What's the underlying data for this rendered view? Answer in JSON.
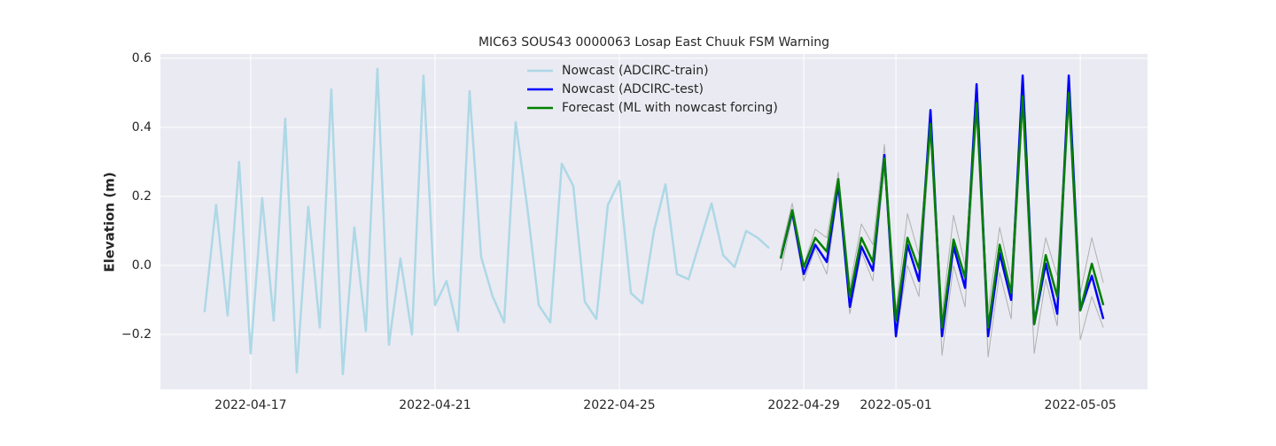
{
  "chart_data": {
    "type": "line",
    "title": "MIC63 SOUS43 0000063 Losap East Chuuk FSM Warning",
    "ylabel": "Elevation (m)",
    "xlim": [
      "2022-04-15 01:00",
      "2022-05-06 11:00"
    ],
    "ylim": [
      -0.359,
      0.6125
    ],
    "xticks": [
      "2022-04-17",
      "2022-04-21",
      "2022-04-25",
      "2022-04-29",
      "2022-05-01",
      "2022-05-05"
    ],
    "yticks": [
      {
        "value": -0.2,
        "label": "−0.2"
      },
      {
        "value": 0,
        "label": "0.0"
      },
      0.2,
      0.4,
      0.6
    ],
    "grid": true,
    "legend": "upper center",
    "background": "#eaeaf2",
    "series": [
      {
        "color": "#b0b0b0",
        "width": 1,
        "x": [
          "2022-04-28 12:00",
          "2022-04-28 18:00",
          "2022-04-29 00:00",
          "2022-04-29 06:00",
          "2022-04-29 12:00",
          "2022-04-29 18:00",
          "2022-04-30 00:00",
          "2022-04-30 06:00",
          "2022-04-30 12:00",
          "2022-04-30 18:00",
          "2022-05-01 00:00",
          "2022-05-01 06:00",
          "2022-05-01 12:00",
          "2022-05-01 18:00",
          "2022-05-02 00:00",
          "2022-05-02 06:00",
          "2022-05-02 12:00",
          "2022-05-02 18:00",
          "2022-05-03 00:00",
          "2022-05-03 06:00",
          "2022-05-03 12:00",
          "2022-05-03 18:00",
          "2022-05-04 00:00",
          "2022-05-04 06:00",
          "2022-05-04 12:00",
          "2022-05-04 18:00",
          "2022-05-05 00:00",
          "2022-05-05 06:00",
          "2022-05-05 12:00"
        ],
        "values": [
          0.04,
          0.18,
          0.0,
          0.105,
          0.08,
          0.27,
          -0.06,
          0.12,
          0.06,
          0.35,
          -0.13,
          0.15,
          0.03,
          0.44,
          -0.14,
          0.145,
          0.0,
          0.49,
          -0.13,
          0.11,
          -0.04,
          0.53,
          -0.11,
          0.08,
          -0.03,
          0.54,
          -0.08,
          0.08,
          -0.05
        ]
      },
      {
        "color": "#b0b0b0",
        "width": 1,
        "x": [
          "2022-04-28 12:00",
          "2022-04-28 18:00",
          "2022-04-29 00:00",
          "2022-04-29 06:00",
          "2022-04-29 12:00",
          "2022-04-29 18:00",
          "2022-04-30 00:00",
          "2022-04-30 06:00",
          "2022-04-30 12:00",
          "2022-04-30 18:00",
          "2022-05-01 00:00",
          "2022-05-01 06:00",
          "2022-05-01 12:00",
          "2022-05-01 18:00",
          "2022-05-02 00:00",
          "2022-05-02 06:00",
          "2022-05-02 12:00",
          "2022-05-02 18:00",
          "2022-05-03 00:00",
          "2022-05-03 06:00",
          "2022-05-03 12:00",
          "2022-05-03 18:00",
          "2022-05-04 00:00",
          "2022-05-04 06:00",
          "2022-05-04 12:00",
          "2022-05-04 18:00",
          "2022-05-05 00:00",
          "2022-05-05 06:00",
          "2022-05-05 12:00"
        ],
        "values": [
          -0.015,
          0.14,
          -0.045,
          0.05,
          -0.025,
          0.22,
          -0.14,
          0.04,
          -0.045,
          0.28,
          -0.21,
          0.0,
          -0.09,
          0.38,
          -0.26,
          0.0,
          -0.12,
          0.44,
          -0.265,
          -0.02,
          -0.155,
          0.46,
          -0.255,
          -0.04,
          -0.175,
          0.47,
          -0.215,
          -0.09,
          -0.18
        ]
      },
      {
        "name": "Nowcast (ADCIRC-train)",
        "color": "#add8e6",
        "width": 2.5,
        "x": [
          "2022-04-16 00:00",
          "2022-04-16 06:00",
          "2022-04-16 12:00",
          "2022-04-16 18:00",
          "2022-04-17 00:00",
          "2022-04-17 06:00",
          "2022-04-17 12:00",
          "2022-04-17 18:00",
          "2022-04-18 00:00",
          "2022-04-18 06:00",
          "2022-04-18 12:00",
          "2022-04-18 18:00",
          "2022-04-19 00:00",
          "2022-04-19 06:00",
          "2022-04-19 12:00",
          "2022-04-19 18:00",
          "2022-04-20 00:00",
          "2022-04-20 06:00",
          "2022-04-20 12:00",
          "2022-04-20 18:00",
          "2022-04-21 00:00",
          "2022-04-21 06:00",
          "2022-04-21 12:00",
          "2022-04-21 18:00",
          "2022-04-22 00:00",
          "2022-04-22 06:00",
          "2022-04-22 12:00",
          "2022-04-22 18:00",
          "2022-04-23 00:00",
          "2022-04-23 06:00",
          "2022-04-23 12:00",
          "2022-04-23 18:00",
          "2022-04-24 00:00",
          "2022-04-24 06:00",
          "2022-04-24 12:00",
          "2022-04-24 18:00",
          "2022-04-25 00:00",
          "2022-04-25 06:00",
          "2022-04-25 12:00",
          "2022-04-25 18:00",
          "2022-04-26 00:00",
          "2022-04-26 06:00",
          "2022-04-26 12:00",
          "2022-04-26 18:00",
          "2022-04-27 00:00",
          "2022-04-27 06:00",
          "2022-04-27 12:00",
          "2022-04-27 18:00",
          "2022-04-28 00:00",
          "2022-04-28 06:00"
        ],
        "values": [
          -0.135,
          0.175,
          -0.145,
          0.3,
          -0.255,
          0.195,
          -0.16,
          0.425,
          -0.31,
          0.17,
          -0.18,
          0.51,
          -0.315,
          0.11,
          -0.19,
          0.57,
          -0.23,
          0.02,
          -0.2,
          0.55,
          -0.115,
          -0.045,
          -0.19,
          0.505,
          0.025,
          -0.09,
          -0.165,
          0.415,
          0.17,
          -0.115,
          -0.165,
          0.295,
          0.23,
          -0.105,
          -0.155,
          0.175,
          0.245,
          -0.08,
          -0.11,
          0.1,
          0.235,
          -0.025,
          -0.04,
          0.07,
          0.18,
          0.03,
          -0.005,
          0.1,
          0.08,
          0.05
        ]
      },
      {
        "name": "Nowcast (ADCIRC-test)",
        "color": "#0000ff",
        "width": 2.5,
        "x": [
          "2022-04-28 12:00",
          "2022-04-28 18:00",
          "2022-04-29 00:00",
          "2022-04-29 06:00",
          "2022-04-29 12:00",
          "2022-04-29 18:00",
          "2022-04-30 00:00",
          "2022-04-30 06:00",
          "2022-04-30 12:00",
          "2022-04-30 18:00",
          "2022-05-01 00:00",
          "2022-05-01 06:00",
          "2022-05-01 12:00",
          "2022-05-01 18:00",
          "2022-05-02 00:00",
          "2022-05-02 06:00",
          "2022-05-02 12:00",
          "2022-05-02 18:00",
          "2022-05-03 00:00",
          "2022-05-03 06:00",
          "2022-05-03 12:00",
          "2022-05-03 18:00",
          "2022-05-04 00:00",
          "2022-05-04 06:00",
          "2022-05-04 12:00",
          "2022-05-04 18:00",
          "2022-05-05 00:00",
          "2022-05-05 06:00",
          "2022-05-05 12:00"
        ],
        "values": [
          0.02,
          0.155,
          -0.025,
          0.06,
          0.01,
          0.235,
          -0.12,
          0.055,
          -0.015,
          0.32,
          -0.205,
          0.06,
          -0.045,
          0.45,
          -0.205,
          0.055,
          -0.065,
          0.525,
          -0.205,
          0.035,
          -0.1,
          0.55,
          -0.17,
          0.005,
          -0.14,
          0.55,
          -0.13,
          -0.03,
          -0.155
        ]
      },
      {
        "name": "Forecast (ML with nowcast forcing)",
        "color": "#008000",
        "width": 2.5,
        "x": [
          "2022-04-28 12:00",
          "2022-04-28 18:00",
          "2022-04-29 00:00",
          "2022-04-29 06:00",
          "2022-04-29 12:00",
          "2022-04-29 18:00",
          "2022-04-30 00:00",
          "2022-04-30 06:00",
          "2022-04-30 12:00",
          "2022-04-30 18:00",
          "2022-05-01 00:00",
          "2022-05-01 06:00",
          "2022-05-01 12:00",
          "2022-05-01 18:00",
          "2022-05-02 00:00",
          "2022-05-02 06:00",
          "2022-05-02 12:00",
          "2022-05-02 18:00",
          "2022-05-03 00:00",
          "2022-05-03 06:00",
          "2022-05-03 12:00",
          "2022-05-03 18:00",
          "2022-05-04 00:00",
          "2022-05-04 06:00",
          "2022-05-04 12:00",
          "2022-05-04 18:00",
          "2022-05-05 00:00",
          "2022-05-05 06:00",
          "2022-05-05 12:00"
        ],
        "values": [
          0.02,
          0.16,
          -0.005,
          0.08,
          0.04,
          0.25,
          -0.09,
          0.08,
          0.01,
          0.31,
          -0.16,
          0.08,
          -0.01,
          0.41,
          -0.18,
          0.075,
          -0.035,
          0.47,
          -0.18,
          0.06,
          -0.08,
          0.49,
          -0.17,
          0.03,
          -0.09,
          0.5,
          -0.13,
          0.005,
          -0.115
        ]
      }
    ]
  }
}
